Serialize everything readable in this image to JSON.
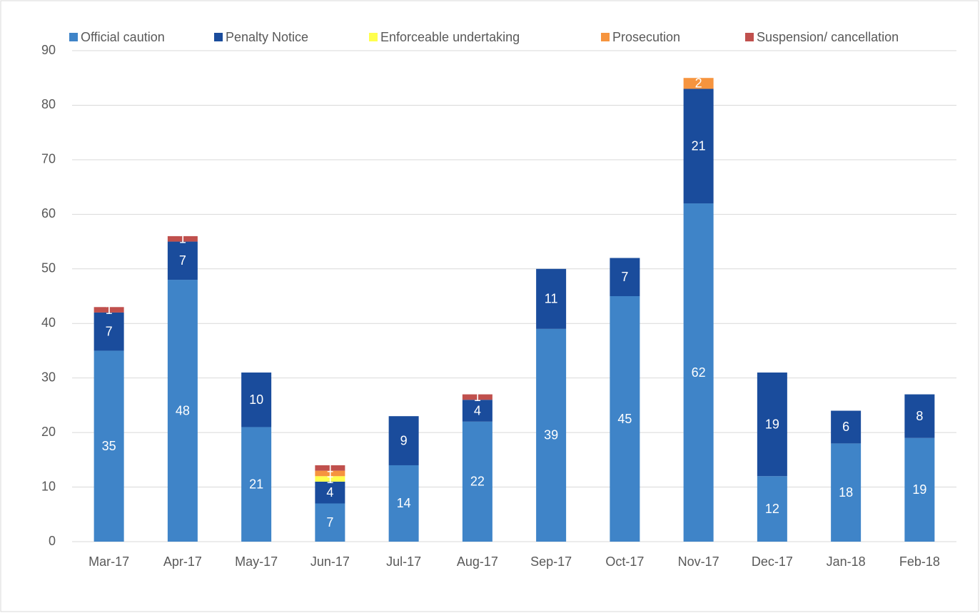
{
  "chart_data": {
    "type": "bar",
    "stacked": true,
    "categories": [
      "Mar-17",
      "Apr-17",
      "May-17",
      "Jun-17",
      "Jul-17",
      "Aug-17",
      "Sep-17",
      "Oct-17",
      "Nov-17",
      "Dec-17",
      "Jan-18",
      "Feb-18"
    ],
    "series": [
      {
        "name": "Official caution",
        "color": "#3f84c8",
        "values": [
          35,
          48,
          21,
          7,
          14,
          22,
          39,
          45,
          62,
          12,
          18,
          19
        ]
      },
      {
        "name": "Penalty Notice",
        "color": "#1a4c9c",
        "values": [
          7,
          7,
          10,
          4,
          9,
          4,
          11,
          7,
          21,
          19,
          6,
          8
        ]
      },
      {
        "name": "Enforceable undertaking",
        "color": "#ffff4d",
        "values": [
          null,
          null,
          null,
          1,
          null,
          null,
          null,
          null,
          null,
          null,
          null,
          null
        ]
      },
      {
        "name": "Prosecution",
        "color": "#f6943e",
        "values": [
          null,
          null,
          null,
          1,
          null,
          null,
          null,
          null,
          2,
          null,
          null,
          null
        ]
      },
      {
        "name": "Suspension/ cancellation",
        "color": "#c0504d",
        "values": [
          1,
          1,
          null,
          1,
          null,
          1,
          null,
          null,
          null,
          null,
          null,
          null
        ]
      }
    ],
    "ylim": [
      0,
      90
    ],
    "yticks": [
      0,
      10,
      20,
      30,
      40,
      50,
      60,
      70,
      80,
      90
    ],
    "grid": true,
    "legend": "top"
  }
}
